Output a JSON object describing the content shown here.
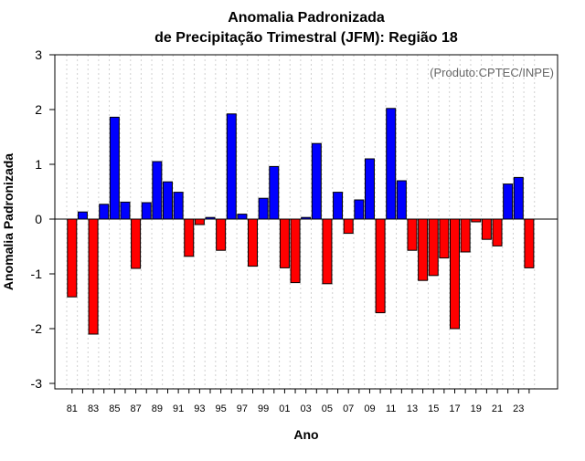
{
  "chart_data": {
    "type": "bar",
    "title_line1": "Anomalia Padronizada",
    "title_line2": "de Precipitação Trimestral (JFM): Região 18",
    "xlabel": "Ano",
    "ylabel": "Anomalia Padronizada",
    "credit": "(Produto:CPTEC/INPE)",
    "ylim": [
      -3.1,
      3.0
    ],
    "yticks": [
      -3,
      -2,
      -1,
      0,
      1,
      2,
      3
    ],
    "ytick_labels": [
      "-3",
      "-2",
      "-1",
      "0",
      "1",
      "2",
      "3"
    ],
    "tick_every": 2,
    "positive_color": "#0000ff",
    "negative_color": "#ff0000",
    "categories": [
      "81",
      "82",
      "83",
      "84",
      "85",
      "86",
      "87",
      "88",
      "89",
      "90",
      "91",
      "92",
      "93",
      "94",
      "95",
      "96",
      "97",
      "98",
      "99",
      "00",
      "01",
      "02",
      "03",
      "04",
      "05",
      "06",
      "07",
      "08",
      "09",
      "10",
      "11",
      "12",
      "13",
      "14",
      "15",
      "16",
      "17",
      "18",
      "19",
      "20",
      "21",
      "22",
      "23",
      "24"
    ],
    "values": [
      -1.42,
      0.13,
      -2.1,
      0.27,
      1.86,
      0.31,
      -0.9,
      0.3,
      1.05,
      0.68,
      0.49,
      -0.68,
      -0.1,
      0.03,
      -0.57,
      1.92,
      0.09,
      -0.86,
      0.38,
      0.96,
      -0.89,
      -1.16,
      0.03,
      1.38,
      -1.18,
      0.49,
      -0.26,
      0.35,
      1.1,
      -1.71,
      2.02,
      0.7,
      -0.57,
      -1.12,
      -1.03,
      -0.71,
      -2.0,
      -0.6,
      -0.05,
      -0.37,
      -0.49,
      0.64,
      0.76,
      -0.89
    ]
  }
}
